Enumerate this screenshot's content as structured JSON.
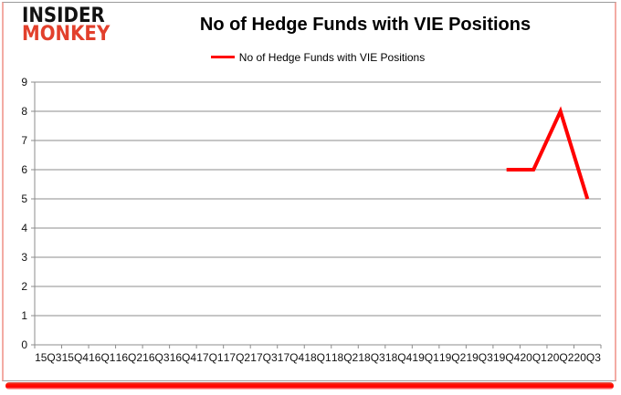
{
  "logo": {
    "line1": "INSIDER",
    "line2": "MONKEY"
  },
  "header": {
    "title": "No of Hedge Funds with VIE Positions"
  },
  "legend": {
    "label": "No of Hedge Funds with VIE Positions"
  },
  "colors": {
    "series": "#ff0000",
    "grid": "#8c8c8c",
    "axis": "#8c8c8c",
    "logo_black": "#121212",
    "logo_red": "#e2402c",
    "accent_bar": "#ff0000",
    "side_border": "#f3aba4"
  },
  "chart_data": {
    "type": "line",
    "title": "No of Hedge Funds with VIE Positions",
    "xlabel": "",
    "ylabel": "",
    "categories": [
      "15Q3",
      "15Q4",
      "16Q1",
      "16Q2",
      "16Q3",
      "16Q4",
      "17Q1",
      "17Q2",
      "17Q3",
      "17Q4",
      "18Q1",
      "18Q2",
      "18Q3",
      "18Q4",
      "19Q1",
      "19Q2",
      "19Q3",
      "19Q4",
      "20Q1",
      "20Q2",
      "20Q3"
    ],
    "series": [
      {
        "name": "No of Hedge Funds with VIE Positions",
        "color": "#ff0000",
        "values": [
          null,
          null,
          null,
          null,
          null,
          null,
          null,
          null,
          null,
          null,
          null,
          null,
          null,
          null,
          null,
          null,
          null,
          6,
          6,
          8,
          5
        ]
      }
    ],
    "ylim": [
      0,
      9
    ],
    "ytick_step": 1,
    "grid": true,
    "legend_position": "top"
  }
}
